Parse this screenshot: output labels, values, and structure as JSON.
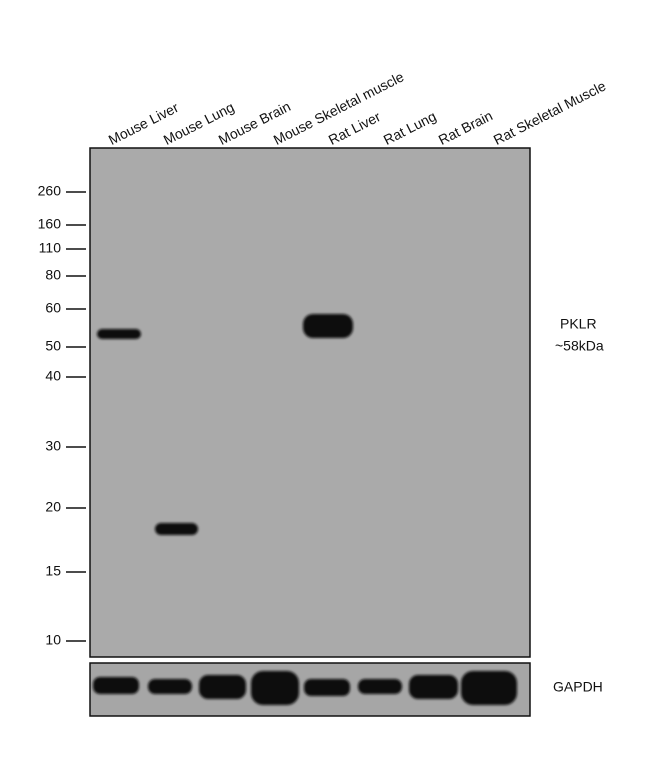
{
  "lanes": [
    "Mouse Liver",
    "Mouse Lung",
    "Mouse Brain",
    "Mouse Skeletal muscle",
    "Rat Liver",
    "Rat Lung",
    "Rat Brain",
    "Rat Skeletal Muscle"
  ],
  "markers": [
    260,
    160,
    110,
    80,
    60,
    50,
    40,
    30,
    20,
    15,
    10
  ],
  "target": {
    "name": "PKLR",
    "size": "~58kDa"
  },
  "loading_control": "GAPDH"
}
